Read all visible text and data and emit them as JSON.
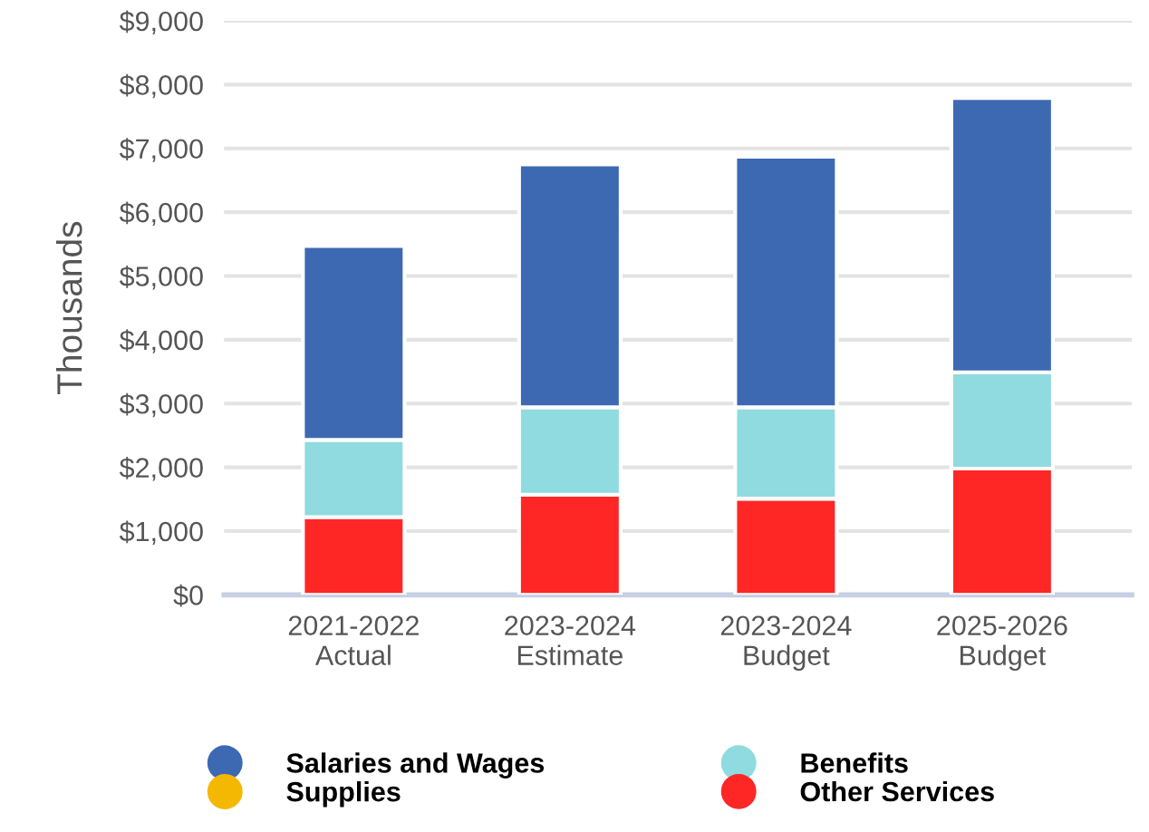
{
  "chart_data": {
    "type": "bar",
    "stacked": true,
    "ylabel": "Thousands",
    "categories": [
      "2021-2022\nActual",
      "2023-2024\nEstimate",
      "2023-2024\nBudget",
      "2025-2026\nBudget"
    ],
    "series": [
      {
        "name": "Other Services",
        "color": "#ff2626",
        "values": [
          1220,
          1570,
          1510,
          1980
        ]
      },
      {
        "name": "Supplies",
        "color": "#f5b800",
        "values": [
          0,
          0,
          0,
          0
        ]
      },
      {
        "name": "Benefits",
        "color": "#8fdbdf",
        "values": [
          1210,
          1370,
          1430,
          1510
        ]
      },
      {
        "name": "Salaries and Wages",
        "color": "#3d69b3",
        "values": [
          3040,
          3810,
          3930,
          4300
        ]
      }
    ],
    "ylim": [
      0,
      9000
    ],
    "yticks": [
      {
        "value": 0,
        "label": "$0"
      },
      {
        "value": 1000,
        "label": "$1,000"
      },
      {
        "value": 2000,
        "label": "$2,000"
      },
      {
        "value": 3000,
        "label": "$3,000"
      },
      {
        "value": 4000,
        "label": "$4,000"
      },
      {
        "value": 5000,
        "label": "$5,000"
      },
      {
        "value": 6000,
        "label": "$6,000"
      },
      {
        "value": 7000,
        "label": "$7,000"
      },
      {
        "value": 8000,
        "label": "$8,000"
      },
      {
        "value": 9000,
        "label": "$9,000"
      }
    ],
    "grid": "y",
    "legend": "bottom"
  }
}
